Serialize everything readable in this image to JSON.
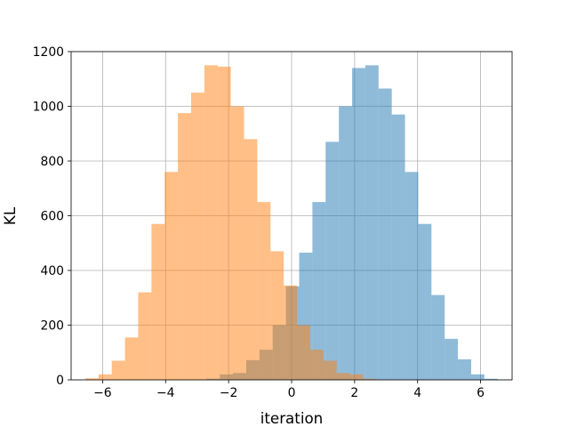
{
  "chart_data": {
    "type": "histogram",
    "title": "",
    "xlabel": "iteration",
    "ylabel": "KL",
    "xlim": [
      -7.0,
      7.0
    ],
    "ylim": [
      0,
      1200
    ],
    "xticks": [
      -6,
      -4,
      -2,
      0,
      2,
      4,
      6
    ],
    "xtick_labels": [
      "−6",
      "−4",
      "−2",
      "0",
      "2",
      "4",
      "6"
    ],
    "yticks": [
      0,
      200,
      400,
      600,
      800,
      1000,
      1200
    ],
    "ytick_labels": [
      "0",
      "200",
      "400",
      "600",
      "800",
      "1000",
      "1200"
    ],
    "grid": true,
    "legend": false,
    "series": [
      {
        "color": "#1f77b4",
        "alpha": 0.5,
        "bin_edges": [
          -2.7,
          -2.28,
          -1.86,
          -1.44,
          -1.02,
          -0.6,
          -0.18,
          0.24,
          0.66,
          1.08,
          1.5,
          1.92,
          2.34,
          2.76,
          3.18,
          3.6,
          4.02,
          4.44,
          4.86,
          5.28,
          5.7,
          6.12,
          6.54
        ],
        "counts": [
          4,
          20,
          25,
          72,
          110,
          200,
          342,
          465,
          650,
          870,
          1000,
          1140,
          1150,
          1065,
          970,
          760,
          570,
          310,
          150,
          75,
          20,
          4
        ]
      },
      {
        "color": "#ff7f0e",
        "alpha": 0.5,
        "bin_edges": [
          -6.55,
          -6.13,
          -5.71,
          -5.29,
          -4.87,
          -4.45,
          -4.03,
          -3.61,
          -3.19,
          -2.77,
          -2.35,
          -1.93,
          -1.51,
          -1.09,
          -0.67,
          -0.25,
          0.17,
          0.59,
          1.01,
          1.43,
          1.85,
          2.27,
          2.69
        ],
        "counts": [
          6,
          20,
          70,
          155,
          320,
          570,
          760,
          975,
          1050,
          1150,
          1145,
          1000,
          880,
          650,
          470,
          345,
          200,
          110,
          70,
          25,
          20,
          4
        ]
      }
    ]
  }
}
